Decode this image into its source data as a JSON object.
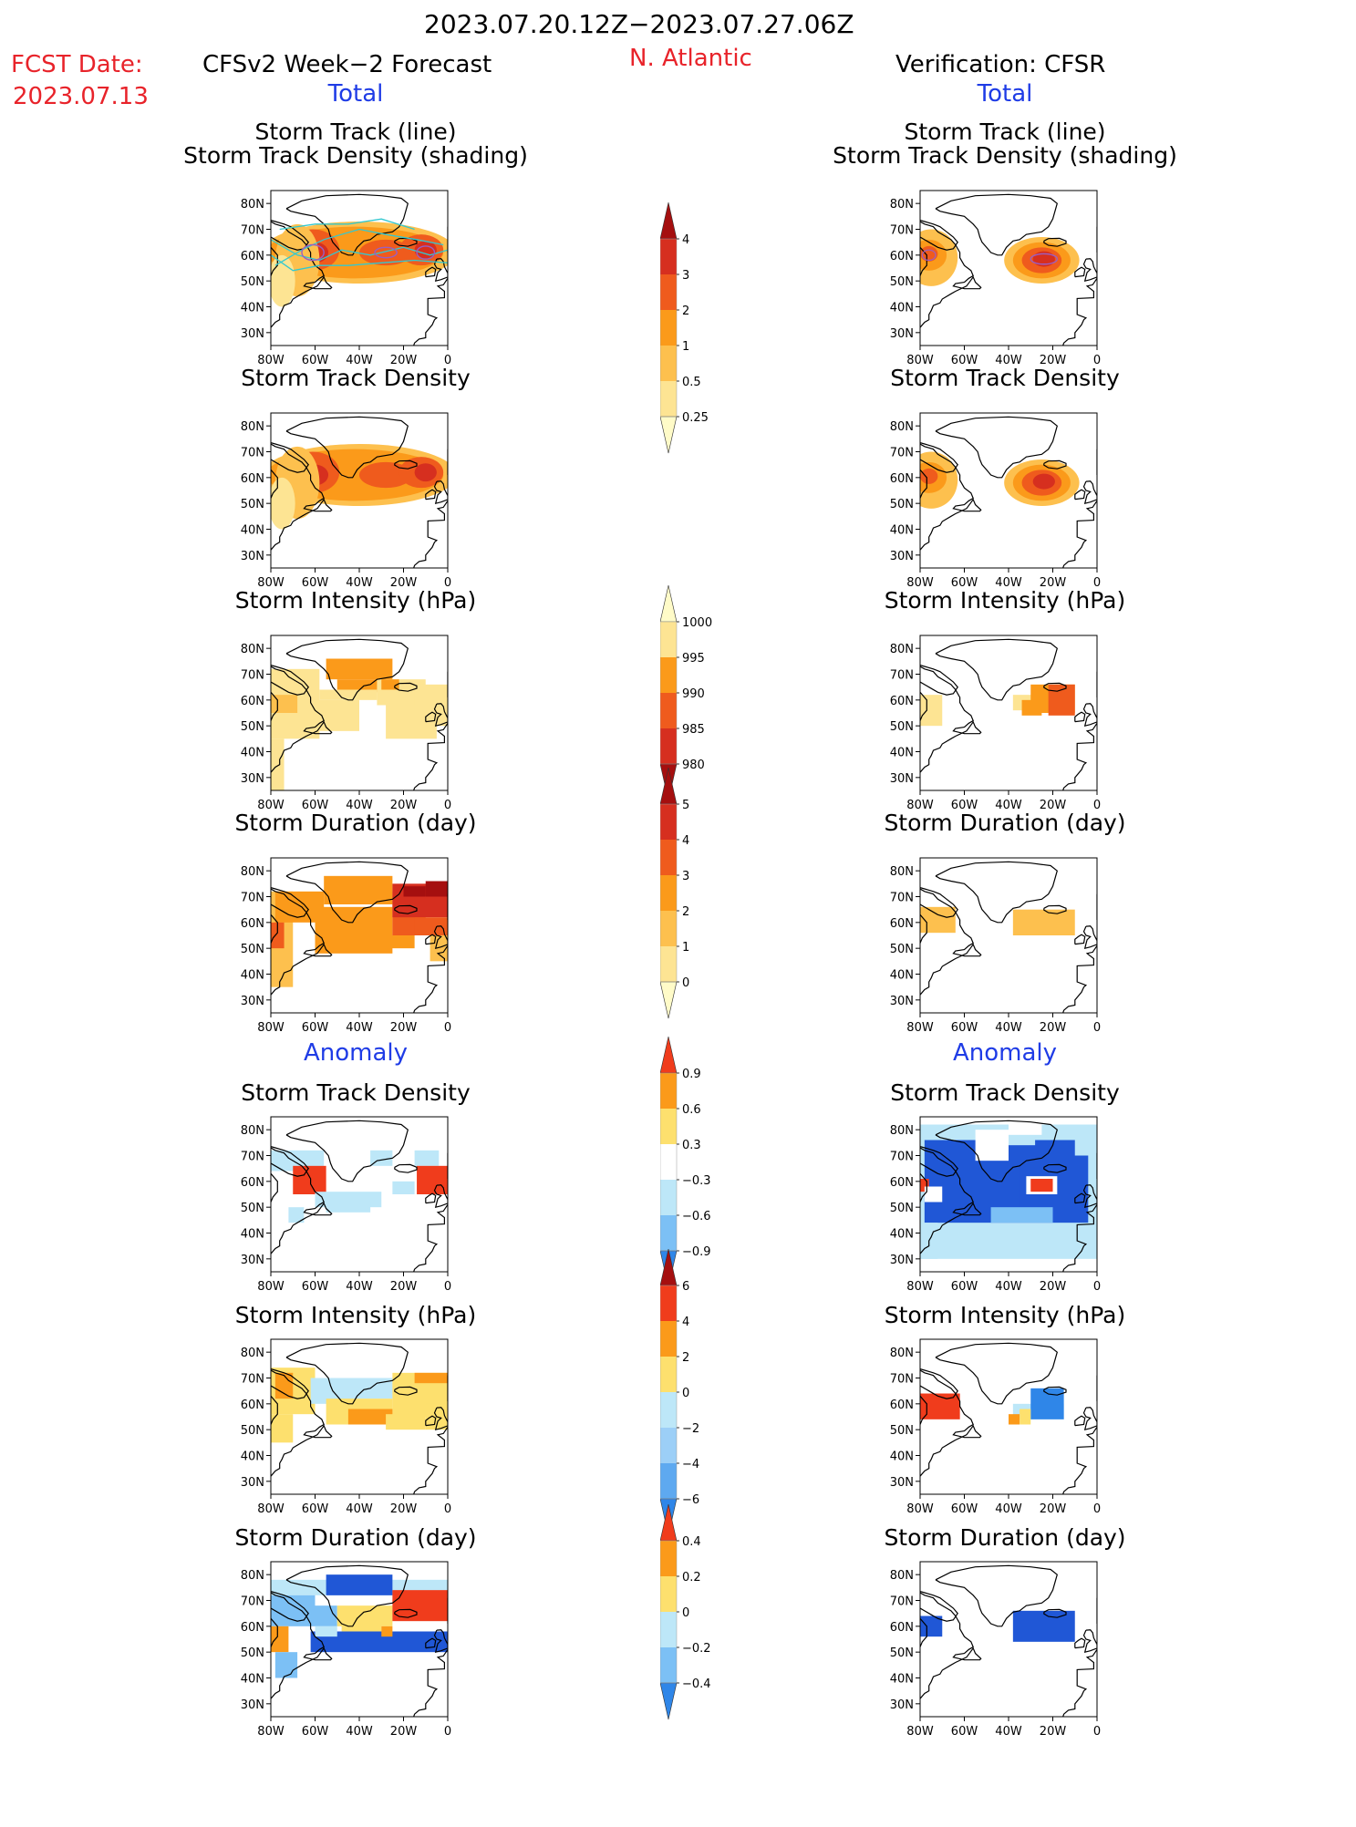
{
  "header": {
    "date_range": "2023.07.20.12Z−2023.07.27.06Z",
    "fcst_label": "FCST Date:",
    "fcst_date": "2023.07.13",
    "model": "CFSv2 Week−2 Forecast",
    "region": "N. Atlantic",
    "verification": "Verification: CFSR",
    "total_left": "Total",
    "total_right": "Total",
    "anomaly_left": "Anomaly",
    "anomaly_right": "Anomaly"
  },
  "colors": {
    "title_red": "#e8232a",
    "section_blue": "#1f3ce6",
    "track_line_cyan": "#33c8d0",
    "track_line_purple": "#9b5fc0"
  },
  "titles": {
    "track_line": "Storm Track (line)",
    "track_shading": "Storm Track Density (shading)",
    "density": "Storm Track Density",
    "intensity": "Storm Intensity (hPa)",
    "duration": "Storm Duration (day)"
  },
  "axes": {
    "x_ticks": [
      "80W",
      "60W",
      "40W",
      "20W",
      "0"
    ],
    "y_ticks": [
      "80N",
      "70N",
      "60N",
      "50N",
      "40N",
      "30N"
    ],
    "lon_range": [
      -80,
      0
    ],
    "lat_range": [
      25,
      85
    ]
  },
  "chart_data": [
    {
      "type": "heatmap",
      "column": "forecast",
      "title": "Storm Track Density",
      "variable": "density",
      "overlay_lines": true
    },
    {
      "type": "heatmap",
      "column": "verification",
      "title": "Storm Track Density",
      "variable": "density",
      "overlay_lines": true
    },
    {
      "type": "heatmap",
      "column": "forecast",
      "title": "Storm Track Density",
      "variable": "density"
    },
    {
      "type": "heatmap",
      "column": "verification",
      "title": "Storm Track Density",
      "variable": "density"
    },
    {
      "type": "heatmap",
      "column": "forecast",
      "title": "Storm Intensity (hPa)",
      "variable": "intensity"
    },
    {
      "type": "heatmap",
      "column": "verification",
      "title": "Storm Intensity (hPa)",
      "variable": "intensity"
    },
    {
      "type": "heatmap",
      "column": "forecast",
      "title": "Storm Duration (day)",
      "variable": "duration"
    },
    {
      "type": "heatmap",
      "column": "verification",
      "title": "Storm Duration (day)",
      "variable": "duration"
    },
    {
      "type": "heatmap",
      "column": "forecast",
      "title": "Storm Track Density",
      "variable": "density_anomaly"
    },
    {
      "type": "heatmap",
      "column": "verification",
      "title": "Storm Track Density",
      "variable": "density_anomaly"
    },
    {
      "type": "heatmap",
      "column": "forecast",
      "title": "Storm Intensity (hPa)",
      "variable": "intensity_anomaly"
    },
    {
      "type": "heatmap",
      "column": "verification",
      "title": "Storm Intensity (hPa)",
      "variable": "intensity_anomaly"
    },
    {
      "type": "heatmap",
      "column": "forecast",
      "title": "Storm Duration (day)",
      "variable": "duration_anomaly"
    },
    {
      "type": "heatmap",
      "column": "verification",
      "title": "Storm Duration (day)",
      "variable": "duration_anomaly"
    }
  ],
  "colorbars": {
    "density": {
      "labels": [
        "4",
        "3",
        "2",
        "1",
        "0.5",
        "0.25"
      ],
      "colors": [
        "#a50f0f",
        "#d62f1f",
        "#ef5b1d",
        "#fb9a1a",
        "#fdc04e",
        "#fde493",
        "#fffbc8"
      ]
    },
    "intensity": {
      "labels": [
        "1000",
        "995",
        "990",
        "985",
        "980"
      ],
      "colors": [
        "#fffbc8",
        "#fde493",
        "#fb9a1a",
        "#ef5b1d",
        "#d62f1f",
        "#a50f0f"
      ]
    },
    "duration": {
      "labels": [
        "5",
        "4",
        "3",
        "2",
        "1",
        "0"
      ],
      "colors": [
        "#a50f0f",
        "#d62f1f",
        "#ef5b1d",
        "#fb9a1a",
        "#fdc04e",
        "#fde493",
        "#fffbc8"
      ]
    },
    "density_anomaly": {
      "labels": [
        "0.9",
        "0.6",
        "0.3",
        "−0.3",
        "−0.6",
        "−0.9"
      ],
      "colors": [
        "#f03c1c",
        "#fb9a1a",
        "#fde06e",
        "#ffffff",
        "#bde7f8",
        "#7cc0f5",
        "#2f86e8"
      ]
    },
    "intensity_anomaly": {
      "labels": [
        "6",
        "4",
        "2",
        "0",
        "−2",
        "−4",
        "−6"
      ],
      "colors": [
        "#a50f0f",
        "#f03c1c",
        "#fb9a1a",
        "#fde06e",
        "#bde7f8",
        "#9ccff7",
        "#5ea9f0",
        "#2f86e8"
      ]
    },
    "duration_anomaly": {
      "labels": [
        "0.4",
        "0.2",
        "0",
        "−0.2",
        "−0.4"
      ],
      "colors": [
        "#f03c1c",
        "#fb9a1a",
        "#fde06e",
        "#bde7f8",
        "#7cc0f5",
        "#2f86e8"
      ]
    }
  }
}
